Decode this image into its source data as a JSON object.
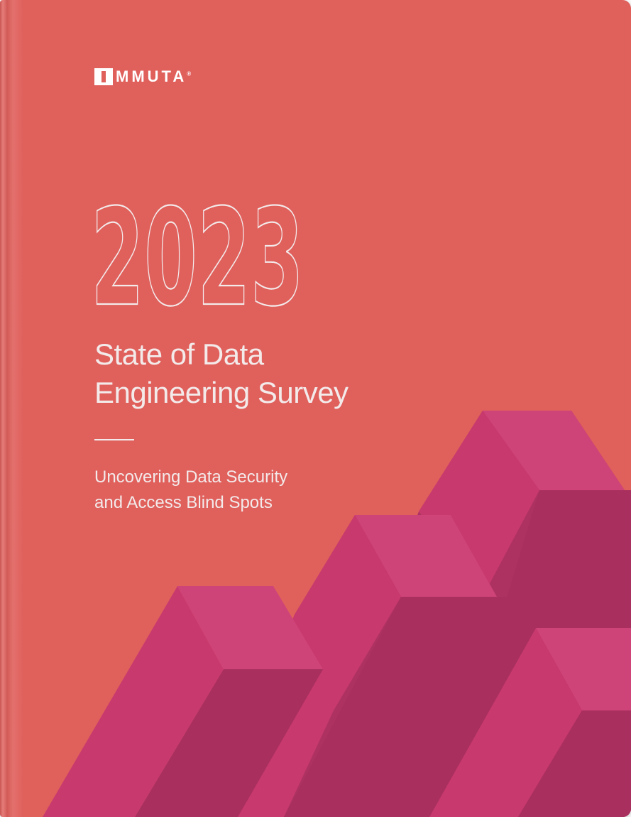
{
  "brand": {
    "logo_text": "MMUTA",
    "logo_symbol": "®",
    "logo_icon": "immuta-i-mark-icon"
  },
  "cover": {
    "year": "2023",
    "title_line1": "State of Data",
    "title_line2": "Engineering Survey",
    "subtitle_line1": "Uncovering Data Security",
    "subtitle_line2": "and Access Blind Spots"
  },
  "colors": {
    "background": "#e0605c",
    "text": "#f3eaea",
    "bar_top": "#c8396e",
    "bar_front": "#ad3262",
    "bar_light": "#cf4478"
  }
}
